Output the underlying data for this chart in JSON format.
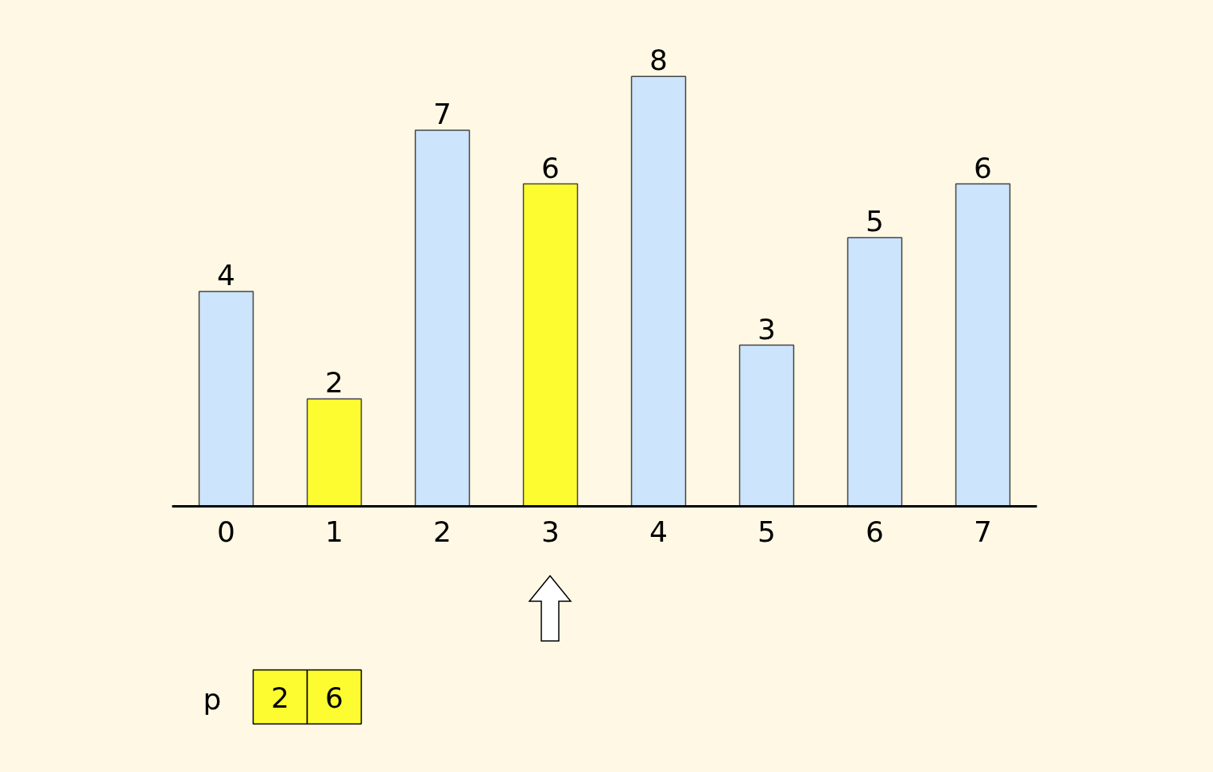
{
  "chart_data": {
    "type": "bar",
    "categories": [
      "0",
      "1",
      "2",
      "3",
      "4",
      "5",
      "6",
      "7"
    ],
    "values": [
      4,
      2,
      7,
      6,
      8,
      3,
      5,
      6
    ],
    "colors": [
      "#cce4fc",
      "#fcfc30",
      "#cce4fc",
      "#fcfc30",
      "#cce4fc",
      "#cce4fc",
      "#cce4fc",
      "#cce4fc"
    ],
    "data_labels": true,
    "grid": false,
    "tick_labels": "x",
    "annotations": [
      "p",
      "2",
      "6"
    ]
  }
}
